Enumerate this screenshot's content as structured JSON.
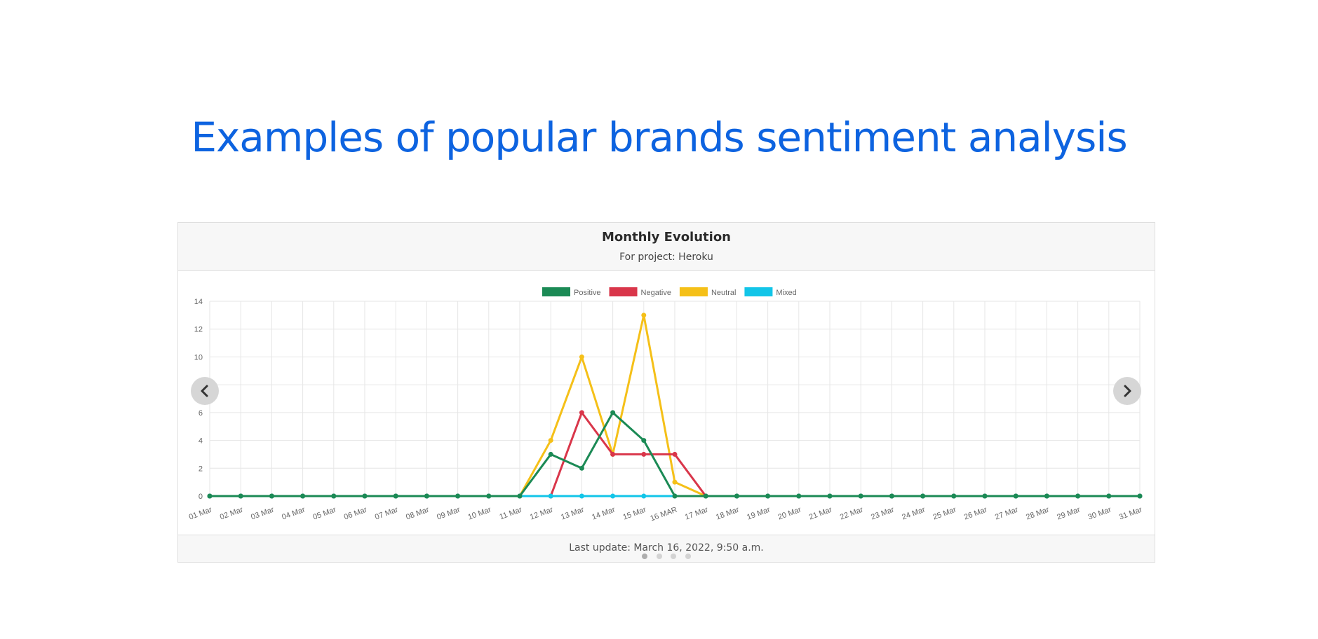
{
  "page": {
    "heading": "Examples of popular brands sentiment analysis"
  },
  "card": {
    "title": "Monthly Evolution",
    "subtitle": "For project: Heroku",
    "footer": "Last update: March 16, 2022, 9:50 a.m."
  },
  "carousel": {
    "prev_icon": "chevron-left-icon",
    "next_icon": "chevron-right-icon",
    "indicator_count": 4,
    "active_index": 0
  },
  "chart_data": {
    "type": "line",
    "categories": [
      "01 Mar",
      "02 Mar",
      "03 Mar",
      "04 Mar",
      "05 Mar",
      "06 Mar",
      "07 Mar",
      "08 Mar",
      "09 Mar",
      "10 Mar",
      "11 Mar",
      "12 Mar",
      "13 Mar",
      "14 Mar",
      "15 Mar",
      "16 MAR",
      "17 Mar",
      "18 Mar",
      "19 Mar",
      "20 Mar",
      "21 Mar",
      "22 Mar",
      "23 Mar",
      "24 Mar",
      "25 Mar",
      "26 Mar",
      "27 Mar",
      "28 Mar",
      "29 Mar",
      "30 Mar",
      "31 Mar"
    ],
    "ylim": [
      0,
      14
    ],
    "yticks": [
      0,
      2,
      4,
      6,
      8,
      10,
      12,
      14
    ],
    "grid": true,
    "legend_position": "top-center",
    "series": [
      {
        "name": "Positive",
        "color": "#1b8a55",
        "values": [
          0,
          0,
          0,
          0,
          0,
          0,
          0,
          0,
          0,
          0,
          0,
          3,
          2,
          6,
          4,
          0,
          0,
          0,
          0,
          0,
          0,
          0,
          0,
          0,
          0,
          0,
          0,
          0,
          0,
          0,
          0
        ]
      },
      {
        "name": "Negative",
        "color": "#d9364a",
        "values": [
          0,
          0,
          0,
          0,
          0,
          0,
          0,
          0,
          0,
          0,
          0,
          0,
          6,
          3,
          3,
          3,
          0,
          0,
          0,
          0,
          0,
          0,
          0,
          0,
          0,
          0,
          0,
          0,
          0,
          0,
          0
        ]
      },
      {
        "name": "Neutral",
        "color": "#f5c018",
        "values": [
          0,
          0,
          0,
          0,
          0,
          0,
          0,
          0,
          0,
          0,
          0,
          4,
          10,
          3,
          13,
          1,
          0,
          0,
          0,
          0,
          0,
          0,
          0,
          0,
          0,
          0,
          0,
          0,
          0,
          0,
          0
        ]
      },
      {
        "name": "Mixed",
        "color": "#12c5e8",
        "values": [
          0,
          0,
          0,
          0,
          0,
          0,
          0,
          0,
          0,
          0,
          0,
          0,
          0,
          0,
          0,
          0,
          0,
          0,
          0,
          0,
          0,
          0,
          0,
          0,
          0,
          0,
          0,
          0,
          0,
          0,
          0
        ]
      }
    ],
    "draw_order": [
      "Neutral",
      "Negative",
      "Mixed",
      "Positive"
    ]
  }
}
